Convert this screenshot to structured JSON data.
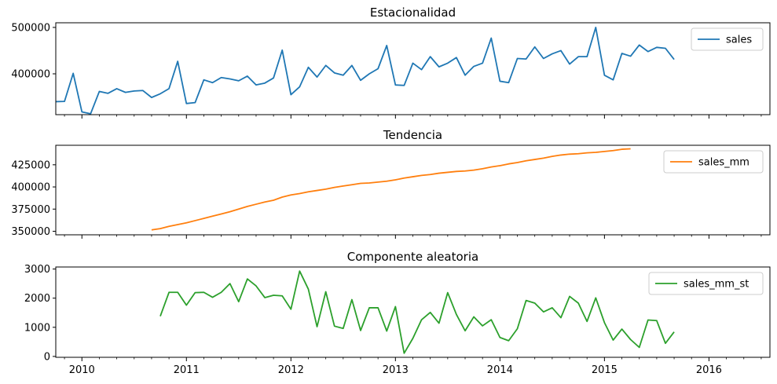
{
  "chart_data": [
    {
      "type": "line",
      "title": "Estacionalidad",
      "xlabel": "",
      "ylabel": "",
      "xlim": [
        "2009-10",
        "2016-08"
      ],
      "ylim": [
        312000,
        510000
      ],
      "yticks": [
        400000,
        500000
      ],
      "yticklabels": [
        "400000",
        "500000"
      ],
      "legend": "top-right",
      "series": [
        {
          "name": "sales",
          "color": "#1f77b4",
          "start": "2009-10",
          "values": [
            340000,
            340500,
            401000,
            318000,
            314000,
            362000,
            358000,
            368000,
            360000,
            363000,
            364000,
            349000,
            357000,
            368000,
            427000,
            336000,
            338000,
            387000,
            381000,
            392000,
            389000,
            385000,
            395000,
            376000,
            380000,
            391000,
            451000,
            355000,
            372000,
            414000,
            393000,
            418000,
            402000,
            397000,
            418000,
            386000,
            400000,
            411000,
            461000,
            376000,
            375000,
            423000,
            409000,
            437000,
            415000,
            423000,
            435000,
            397000,
            416000,
            423000,
            477000,
            384000,
            381000,
            433000,
            432000,
            458000,
            433000,
            443000,
            450000,
            421000,
            437000,
            437000,
            500000,
            397000,
            387000,
            444000,
            438000,
            462000,
            448000,
            457000,
            455000,
            431000
          ]
        }
      ]
    },
    {
      "type": "line",
      "title": "Tendencia",
      "xlabel": "",
      "ylabel": "",
      "xlim": [
        "2009-10",
        "2016-08"
      ],
      "ylim": [
        346000,
        447000
      ],
      "yticks": [
        350000,
        375000,
        400000,
        425000
      ],
      "yticklabels": [
        "350000",
        "375000",
        "400000",
        "425000"
      ],
      "legend": "top-right",
      "series": [
        {
          "name": "sales_mm",
          "color": "#ff7f0e",
          "start": "2010-09",
          "values": [
            351500,
            353000,
            355500,
            357500,
            359500,
            362000,
            364500,
            367000,
            369500,
            372000,
            375000,
            378000,
            380500,
            383000,
            385000,
            388500,
            391000,
            392500,
            394500,
            396000,
            397500,
            399500,
            401000,
            402500,
            404000,
            404500,
            405500,
            406500,
            408000,
            410000,
            411500,
            413000,
            414000,
            415500,
            416500,
            417500,
            418000,
            419000,
            420500,
            422500,
            424000,
            426000,
            427500,
            429500,
            431000,
            432500,
            434500,
            436000,
            437000,
            437500,
            438500,
            439000,
            440000,
            441000,
            442500,
            443000
          ]
        }
      ]
    },
    {
      "type": "line",
      "title": "Componente aleatoria",
      "xlabel": "",
      "ylabel": "",
      "xlim": [
        "2009-10",
        "2016-08"
      ],
      "ylim": [
        -30,
        3070
      ],
      "yticks": [
        0,
        1000,
        2000,
        3000
      ],
      "yticklabels": [
        "0",
        "1000",
        "2000",
        "3000"
      ],
      "xticks": [
        "2010-01",
        "2011-01",
        "2012-01",
        "2013-01",
        "2014-01",
        "2015-01",
        "2016-01"
      ],
      "xticklabels": [
        "2010",
        "2011",
        "2012",
        "2013",
        "2014",
        "2015",
        "2016"
      ],
      "legend": "top-right",
      "series": [
        {
          "name": "sales_mm_st",
          "color": "#2ca02c",
          "start": "2010-10",
          "values": [
            1380,
            2200,
            2200,
            1760,
            2190,
            2200,
            2030,
            2200,
            2500,
            1880,
            2660,
            2420,
            2020,
            2100,
            2080,
            1620,
            2930,
            2310,
            1020,
            2220,
            1040,
            960,
            1950,
            890,
            1670,
            1670,
            870,
            1710,
            110,
            620,
            1260,
            1510,
            1140,
            2190,
            1440,
            880,
            1360,
            1050,
            1260,
            650,
            540,
            950,
            1920,
            1830,
            1530,
            1670,
            1330,
            2060,
            1830,
            1200,
            2010,
            1160,
            560,
            940,
            580,
            310,
            1250,
            1230,
            450,
            840
          ]
        }
      ]
    }
  ]
}
